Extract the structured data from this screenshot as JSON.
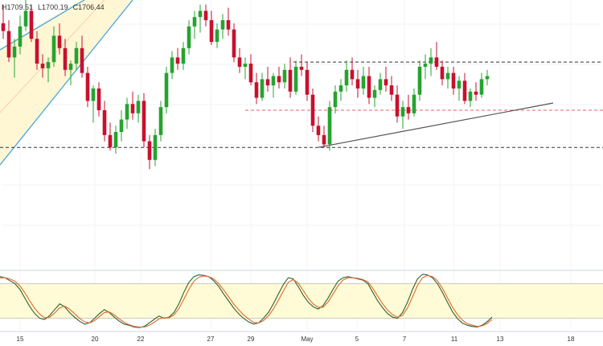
{
  "ohlc": {
    "high": "H1709.51",
    "low": "L1700.19",
    "close": "C1706.44"
  },
  "colors": {
    "up": "#26a32e",
    "down": "#c8102e",
    "channel_fill": "#fff5cc",
    "channel_line": "#3aa0e6",
    "trend_line": "#555555",
    "hline_black": "#333333",
    "hline_red": "#e0645c",
    "stoch_band": "#fffbd6",
    "stoch_k": "#2e5f33",
    "stoch_d": "#e06a2a"
  },
  "chart_data": [
    {
      "type": "candlestick",
      "title": "",
      "x_tick_labels": [
        "15",
        "20",
        "22",
        "27",
        "29",
        "May",
        "5",
        "7",
        "11",
        "13",
        "18"
      ],
      "price_range": [
        1585,
        1755
      ],
      "horizontal_levels": [
        {
          "price": 1715,
          "style": "dashed",
          "color": "#333333"
        },
        {
          "price": 1684,
          "style": "dashed",
          "color": "#e0645c"
        },
        {
          "price": 1660,
          "style": "dashed",
          "color": "#333333"
        }
      ],
      "trendline": {
        "from": [
          1660
        ],
        "to": [
          1703
        ]
      },
      "candles": [
        [
          1740,
          1752,
          1730,
          1735
        ],
        [
          1735,
          1742,
          1715,
          1718
        ],
        [
          1718,
          1730,
          1705,
          1725
        ],
        [
          1725,
          1745,
          1720,
          1738
        ],
        [
          1738,
          1755,
          1735,
          1748
        ],
        [
          1748,
          1752,
          1728,
          1730
        ],
        [
          1730,
          1735,
          1710,
          1714
        ],
        [
          1714,
          1720,
          1705,
          1711
        ],
        [
          1711,
          1718,
          1702,
          1715
        ],
        [
          1715,
          1738,
          1712,
          1732
        ],
        [
          1732,
          1740,
          1720,
          1724
        ],
        [
          1724,
          1730,
          1706,
          1710
        ],
        [
          1710,
          1716,
          1700,
          1714
        ],
        [
          1714,
          1728,
          1710,
          1724
        ],
        [
          1724,
          1732,
          1705,
          1708
        ],
        [
          1708,
          1712,
          1686,
          1690
        ],
        [
          1690,
          1700,
          1676,
          1698
        ],
        [
          1698,
          1702,
          1680,
          1684
        ],
        [
          1684,
          1690,
          1664,
          1668
        ],
        [
          1668,
          1676,
          1658,
          1660
        ],
        [
          1660,
          1674,
          1656,
          1670
        ],
        [
          1670,
          1684,
          1664,
          1678
        ],
        [
          1678,
          1692,
          1672,
          1688
        ],
        [
          1688,
          1696,
          1678,
          1682
        ],
        [
          1682,
          1694,
          1676,
          1690
        ],
        [
          1690,
          1695,
          1660,
          1664
        ],
        [
          1664,
          1668,
          1646,
          1652
        ],
        [
          1652,
          1672,
          1648,
          1668
        ],
        [
          1668,
          1690,
          1664,
          1686
        ],
        [
          1686,
          1712,
          1682,
          1708
        ],
        [
          1708,
          1722,
          1704,
          1718
        ],
        [
          1718,
          1724,
          1710,
          1714
        ],
        [
          1714,
          1728,
          1710,
          1724
        ],
        [
          1724,
          1742,
          1720,
          1738
        ],
        [
          1738,
          1748,
          1730,
          1744
        ],
        [
          1744,
          1752,
          1734,
          1748
        ],
        [
          1748,
          1752,
          1738,
          1742
        ],
        [
          1742,
          1748,
          1726,
          1728
        ],
        [
          1728,
          1740,
          1724,
          1736
        ],
        [
          1736,
          1746,
          1730,
          1742
        ],
        [
          1742,
          1750,
          1732,
          1736
        ],
        [
          1736,
          1740,
          1715,
          1718
        ],
        [
          1718,
          1724,
          1708,
          1712
        ],
        [
          1712,
          1718,
          1704,
          1714
        ],
        [
          1714,
          1720,
          1700,
          1702
        ],
        [
          1702,
          1708,
          1688,
          1692
        ],
        [
          1692,
          1708,
          1690,
          1704
        ],
        [
          1704,
          1712,
          1696,
          1700
        ],
        [
          1700,
          1708,
          1692,
          1706
        ],
        [
          1706,
          1712,
          1698,
          1702
        ],
        [
          1702,
          1714,
          1698,
          1710
        ],
        [
          1710,
          1718,
          1692,
          1696
        ],
        [
          1696,
          1716,
          1694,
          1712
        ],
        [
          1712,
          1720,
          1706,
          1710
        ],
        [
          1710,
          1715,
          1690,
          1694
        ],
        [
          1694,
          1698,
          1670,
          1674
        ],
        [
          1674,
          1680,
          1664,
          1668
        ],
        [
          1668,
          1674,
          1660,
          1662
        ],
        [
          1662,
          1690,
          1658,
          1686
        ],
        [
          1686,
          1700,
          1682,
          1696
        ],
        [
          1696,
          1704,
          1690,
          1700
        ],
        [
          1700,
          1716,
          1696,
          1710
        ],
        [
          1710,
          1718,
          1700,
          1704
        ],
        [
          1704,
          1710,
          1692,
          1698
        ],
        [
          1698,
          1712,
          1694,
          1706
        ],
        [
          1706,
          1712,
          1688,
          1692
        ],
        [
          1692,
          1700,
          1686,
          1697
        ],
        [
          1697,
          1708,
          1694,
          1704
        ],
        [
          1704,
          1712,
          1696,
          1700
        ],
        [
          1700,
          1706,
          1690,
          1694
        ],
        [
          1694,
          1700,
          1676,
          1680
        ],
        [
          1680,
          1690,
          1672,
          1686
        ],
        [
          1686,
          1694,
          1678,
          1682
        ],
        [
          1682,
          1698,
          1680,
          1694
        ],
        [
          1694,
          1716,
          1690,
          1712
        ],
        [
          1712,
          1720,
          1704,
          1714
        ],
        [
          1714,
          1724,
          1706,
          1718
        ],
        [
          1718,
          1728,
          1710,
          1712
        ],
        [
          1712,
          1716,
          1700,
          1704
        ],
        [
          1704,
          1712,
          1698,
          1708
        ],
        [
          1708,
          1712,
          1694,
          1698
        ],
        [
          1698,
          1706,
          1690,
          1703
        ],
        [
          1703,
          1708,
          1688,
          1690
        ],
        [
          1690,
          1698,
          1686,
          1696
        ],
        [
          1696,
          1702,
          1690,
          1694
        ],
        [
          1694,
          1708,
          1692,
          1704
        ],
        [
          1704,
          1710,
          1700,
          1706
        ]
      ]
    },
    {
      "type": "line",
      "title": "",
      "y_range": [
        0,
        100
      ],
      "band": [
        20,
        80
      ],
      "series": [
        {
          "values": [
            92,
            90,
            85,
            80,
            70,
            55,
            40,
            28,
            20,
            18,
            25,
            35,
            45,
            40,
            30,
            22,
            15,
            10,
            12,
            20,
            28,
            35,
            30,
            22,
            15,
            10,
            8,
            5,
            4,
            6,
            12,
            18,
            24,
            20,
            22,
            30,
            45,
            65,
            82,
            92,
            95,
            94,
            92,
            85,
            75,
            62,
            50,
            38,
            28,
            20,
            14,
            10,
            12,
            20,
            30,
            45,
            62,
            78,
            90,
            88,
            75,
            60,
            48,
            40,
            36,
            42,
            55,
            70,
            84,
            90,
            92,
            90,
            88,
            86,
            80,
            65,
            50,
            38,
            28,
            22,
            20,
            30,
            48,
            70,
            88,
            96,
            95,
            90,
            80,
            65,
            48,
            32,
            20,
            12,
            8,
            6,
            5,
            8,
            14,
            22
          ]
        },
        {
          "values": [
            90,
            90,
            88,
            84,
            76,
            64,
            50,
            37,
            27,
            21,
            22,
            29,
            38,
            41,
            36,
            28,
            20,
            14,
            12,
            16,
            23,
            30,
            31,
            26,
            19,
            13,
            9,
            6,
            5,
            5,
            8,
            13,
            19,
            21,
            21,
            26,
            37,
            53,
            70,
            84,
            91,
            93,
            92,
            88,
            80,
            69,
            57,
            45,
            35,
            26,
            19,
            13,
            12,
            16,
            24,
            36,
            51,
            67,
            82,
            87,
            81,
            68,
            55,
            45,
            39,
            39,
            48,
            62,
            76,
            86,
            90,
            90,
            89,
            87,
            83,
            72,
            58,
            45,
            34,
            26,
            22,
            25,
            38,
            57,
            77,
            90,
            94,
            92,
            85,
            72,
            56,
            40,
            27,
            17,
            11,
            8,
            6,
            7,
            11,
            18
          ]
        }
      ]
    }
  ]
}
